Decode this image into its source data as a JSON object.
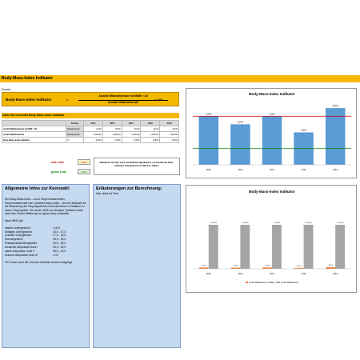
{
  "header": {
    "title": "Body-Mass-Index Indikator"
  },
  "formula": {
    "label": "Formel:",
    "left": "Body-Mass-Index Indikator",
    "eq": "=",
    "numerator": "Anzahl Mitarbeitende mit BMI > 30",
    "denominator": "Anzahl Mitarbeitende",
    "times": "x 100"
  },
  "table": {
    "title": "Daten für Kennzahl Body-Mass-Index Indikator",
    "headers": [
      "",
      "Einheit",
      "2015",
      "2016",
      "2017",
      "2018",
      "2019"
    ],
    "rows": [
      {
        "label": "Anzahl Mitarbeitende mit BMI > 30",
        "unit": "Mitarbeitende",
        "values": [
          "30,00",
          "25,00",
          "30,00",
          "20,00",
          "35,00"
        ]
      },
      {
        "label": "Anzahl Mitarbeitende",
        "unit": "Mitarbeitende",
        "values": [
          "1.000,00",
          "1.000,00",
          "1.000,00",
          "1.000,00",
          "1.000,00"
        ]
      },
      {
        "label": "Body-Mass-Index Indikator",
        "unit": "%",
        "values": [
          "3,00%",
          "2,50%",
          "3,00%",
          "2,00%",
          "3,50%"
        ]
      }
    ]
  },
  "legend_notes": {
    "red_label": "rote Linie",
    "green_label": "grüne Linie",
    "red_value": "3,00%",
    "green_value": "1,00%",
    "note": "Definieren Sie hier nach zusätzliche Signallinien, um bestimmte Ober- und/oder Untergrenzen im Blick zu haben."
  },
  "info": {
    "title": "Allgemeine Infos zur Kennzahl:",
    "p1": "Der Body-Mass-Index – auch Körpermassenindex, Körpermassenzahl oder Quetelet-Kaup-Index – ist eine Maßzahl für die Bewertung des Körpergewichts eines Menschen in Relation zu seiner Körpergröße. Sie wurde 1832 von Adolphe Quetelet sowie nach den Ersten Weltkrieg von Ignaz Kaup entwickelt.",
    "p2": "Nach WHO gilt:",
    "classes": [
      {
        "name": "starkes Untergewicht",
        "range": "<16,0"
      },
      {
        "name": "Mäßiges Untergewicht",
        "range": "16,0 - 17,0"
      },
      {
        "name": "Leichtes Untergewicht",
        "range": "17,0 - 18,5"
      },
      {
        "name": "Normalgewicht",
        "range": "18,5 - 25,0"
      },
      {
        "name": "Präadipositas/Übergewicht",
        "range": "25,0 - 30,0"
      },
      {
        "name": "Moderate Adipositas Grad I",
        "range": "30,0 - 35,0"
      },
      {
        "name": "starke Adipositas Grad II",
        "range": "35,0 - 40,0"
      },
      {
        "name": "extreme Adipositas Grad III",
        "range": "≥ 40"
      }
    ],
    "foot": "Für Frauen sind die Grenzen teilweise anders festgelegt."
  },
  "explanation": {
    "title": "Erläuterungen zur Berechnung:",
    "text": "Hier steht Ihr Text"
  },
  "chart_data": [
    {
      "type": "bar",
      "title": "Body-Mass-Index Indikator",
      "categories": [
        "2015",
        "2016",
        "2017",
        "2018",
        "2019"
      ],
      "values": [
        3.0,
        2.5,
        3.0,
        2.0,
        3.5
      ],
      "data_labels": [
        "3,00%",
        "2,50%",
        "3,00%",
        "2,00%",
        "3,50%"
      ],
      "ylim": [
        0,
        4
      ],
      "reference_lines": [
        {
          "value": 3.0,
          "color": "#c00000"
        },
        {
          "value": 1.0,
          "color": "#008000"
        }
      ],
      "bar_color": "#5b9bd5"
    },
    {
      "type": "bar",
      "title": "Body-Mass-Index Indikator",
      "categories": [
        "2015",
        "2016",
        "2017",
        "2018",
        "2019"
      ],
      "series": [
        {
          "name": "Anzahl Mitarbeitende mit BMI > 30",
          "values": [
            30,
            25,
            30,
            20,
            35
          ],
          "labels": [
            "30,00",
            "25,00",
            "30,00",
            "20,00",
            "35,00"
          ],
          "color": "#ed7d31"
        },
        {
          "name": "Anzahl Mitarbeitende",
          "values": [
            1000,
            1000,
            1000,
            1000,
            1000
          ],
          "labels": [
            "1.000,00",
            "1.000,00",
            "1.000,00",
            "1.000,00",
            "1.000,00"
          ],
          "color": "#a5a5a5"
        }
      ],
      "ylim": [
        0,
        1600
      ]
    }
  ]
}
